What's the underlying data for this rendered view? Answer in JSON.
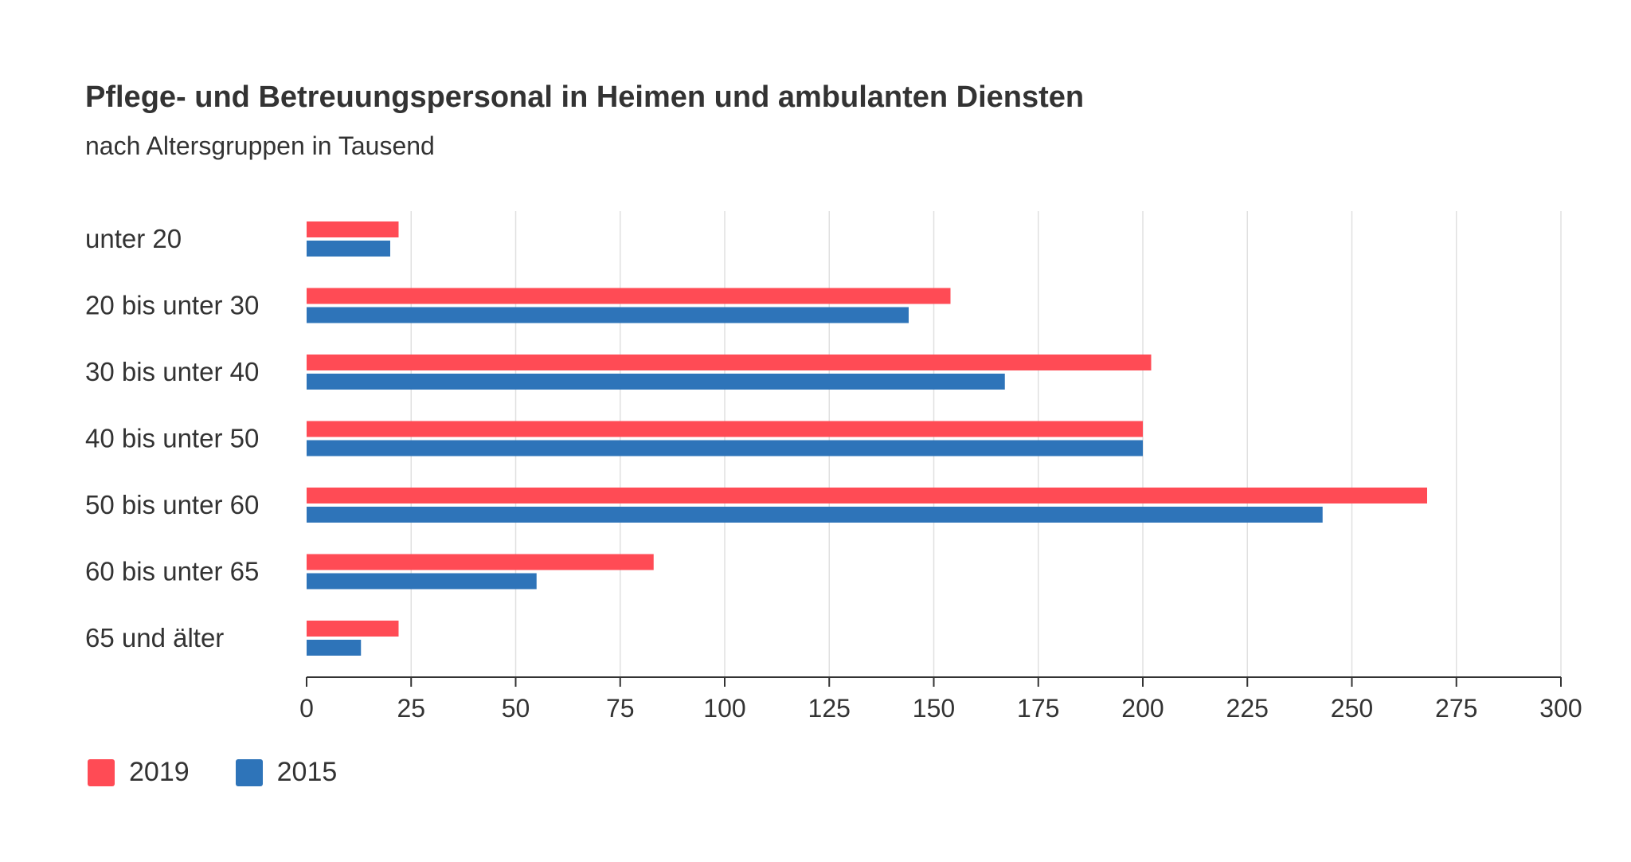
{
  "chart_data": {
    "type": "bar",
    "orientation": "horizontal",
    "title": "Pflege- und Betreuungspersonal in Heimen und ambulanten Diensten",
    "subtitle": "nach Altersgruppen in Tausend",
    "categories": [
      "unter 20",
      "20 bis unter 30",
      "30 bis unter 40",
      "40 bis unter 50",
      "50 bis unter 60",
      "60 bis unter 65",
      "65 und älter"
    ],
    "series": [
      {
        "name": "2019",
        "color": "#ff4b55",
        "values": [
          22,
          154,
          202,
          200,
          268,
          83,
          22
        ]
      },
      {
        "name": "2015",
        "color": "#2e74b9",
        "values": [
          20,
          144,
          167,
          200,
          243,
          55,
          13
        ]
      }
    ],
    "xlim": [
      0,
      300
    ],
    "xticks": [
      "0",
      "25",
      "50",
      "75",
      "100",
      "125",
      "150",
      "175",
      "200",
      "225",
      "250",
      "275",
      "300"
    ],
    "grid": true,
    "legend_position": "bottom-left"
  }
}
